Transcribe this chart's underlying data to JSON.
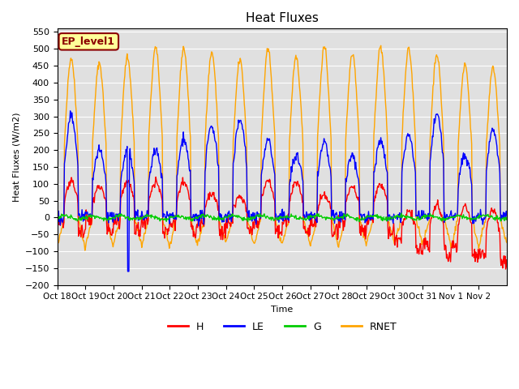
{
  "title": "Heat Fluxes",
  "ylabel": "Heat Fluxes (W/m2)",
  "xlabel": "Time",
  "ylim": [
    -200,
    560
  ],
  "yticks": [
    -200,
    -150,
    -100,
    -50,
    0,
    50,
    100,
    150,
    200,
    250,
    300,
    350,
    400,
    450,
    500,
    550
  ],
  "xtick_labels": [
    "Oct 18",
    "Oct 19",
    "Oct 20",
    "Oct 21",
    "Oct 22",
    "Oct 23",
    "Oct 24",
    "Oct 25",
    "Oct 26",
    "Oct 27",
    "Oct 28",
    "Oct 29",
    "Oct 30",
    "Oct 31",
    "Nov 1",
    "Nov 2"
  ],
  "colors": {
    "H": "#ff0000",
    "LE": "#0000ff",
    "G": "#00cc00",
    "RNET": "#ffa500"
  },
  "legend_label": "EP_level1",
  "legend_box_color": "#ffff99",
  "legend_box_edge": "#8b0000",
  "bg_color": "#e0e0e0",
  "linewidth": 1.0,
  "num_days": 16,
  "pts_per_day": 48
}
